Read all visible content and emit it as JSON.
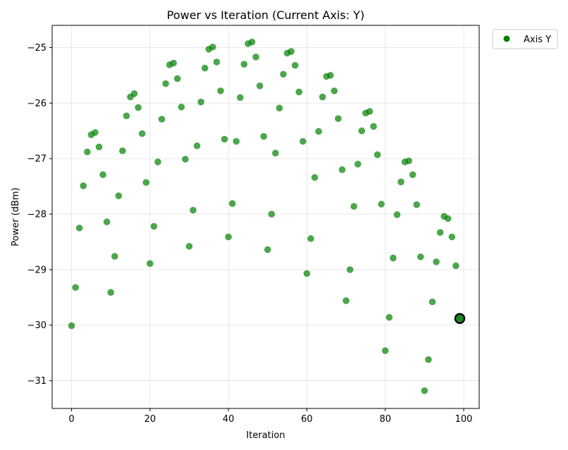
{
  "chart_data": {
    "type": "scatter",
    "title": "Power vs Iteration (Current Axis: Y)",
    "xlabel": "Iteration",
    "ylabel": "Power (dBm)",
    "xlim": [
      -4.95,
      103.95
    ],
    "ylim": [
      -31.5,
      -24.6
    ],
    "xticks": [
      0,
      20,
      40,
      60,
      80,
      100
    ],
    "yticks": [
      -25,
      -26,
      -27,
      -28,
      -29,
      -30,
      -31
    ],
    "grid": true,
    "legend": {
      "placement": "outside-top-right",
      "entries": [
        {
          "label": "Axis Y",
          "color": "#008000"
        }
      ]
    },
    "series": [
      {
        "name": "Axis Y",
        "color": "#008000",
        "x": [
          0,
          1,
          2,
          3,
          4,
          5,
          6,
          7,
          8,
          9,
          10,
          11,
          12,
          13,
          14,
          15,
          16,
          17,
          18,
          19,
          20,
          21,
          22,
          23,
          24,
          25,
          26,
          27,
          28,
          29,
          30,
          31,
          32,
          33,
          34,
          35,
          36,
          37,
          38,
          39,
          40,
          41,
          42,
          43,
          44,
          45,
          46,
          47,
          48,
          49,
          50,
          51,
          52,
          53,
          54,
          55,
          56,
          57,
          58,
          59,
          60,
          61,
          62,
          63,
          64,
          65,
          66,
          67,
          68,
          69,
          70,
          71,
          72,
          73,
          74,
          75,
          76,
          77,
          78,
          79,
          80,
          81,
          82,
          83,
          84,
          85,
          86,
          87,
          88,
          89,
          90,
          91,
          92,
          93,
          94,
          95,
          96,
          97,
          98,
          99
        ],
        "y": [
          -30.01,
          -29.32,
          -28.25,
          -27.49,
          -26.88,
          -26.57,
          -26.53,
          -26.79,
          -27.29,
          -28.14,
          -29.41,
          -28.76,
          -27.67,
          -26.86,
          -26.23,
          -25.89,
          -25.83,
          -26.08,
          -26.55,
          -27.43,
          -28.89,
          -28.22,
          -27.06,
          -26.29,
          -25.65,
          -25.31,
          -25.28,
          -25.56,
          -26.07,
          -27.01,
          -28.58,
          -27.93,
          -26.77,
          -25.98,
          -25.37,
          -25.03,
          -24.99,
          -25.26,
          -25.78,
          -26.65,
          -28.41,
          -27.81,
          -26.69,
          -25.9,
          -25.3,
          -24.93,
          -24.9,
          -25.17,
          -25.69,
          -26.6,
          -28.64,
          -28.0,
          -26.9,
          -26.09,
          -25.48,
          -25.1,
          -25.07,
          -25.32,
          -25.8,
          -26.69,
          -29.07,
          -28.44,
          -27.34,
          -26.51,
          -25.89,
          -25.52,
          -25.5,
          -25.78,
          -26.28,
          -27.2,
          -29.56,
          -29.0,
          -27.86,
          -27.1,
          -26.5,
          -26.18,
          -26.15,
          -26.42,
          -26.93,
          -27.82,
          -30.46,
          -29.86,
          -28.79,
          -28.01,
          -27.42,
          -27.06,
          -27.04,
          -27.29,
          -27.83,
          -28.77,
          -31.18,
          -30.62,
          -29.58,
          -28.86,
          -28.33,
          -28.04,
          -28.08,
          -28.41,
          -28.93,
          -29.88
        ]
      }
    ],
    "highlight": {
      "x": 99,
      "y": -29.88
    }
  }
}
